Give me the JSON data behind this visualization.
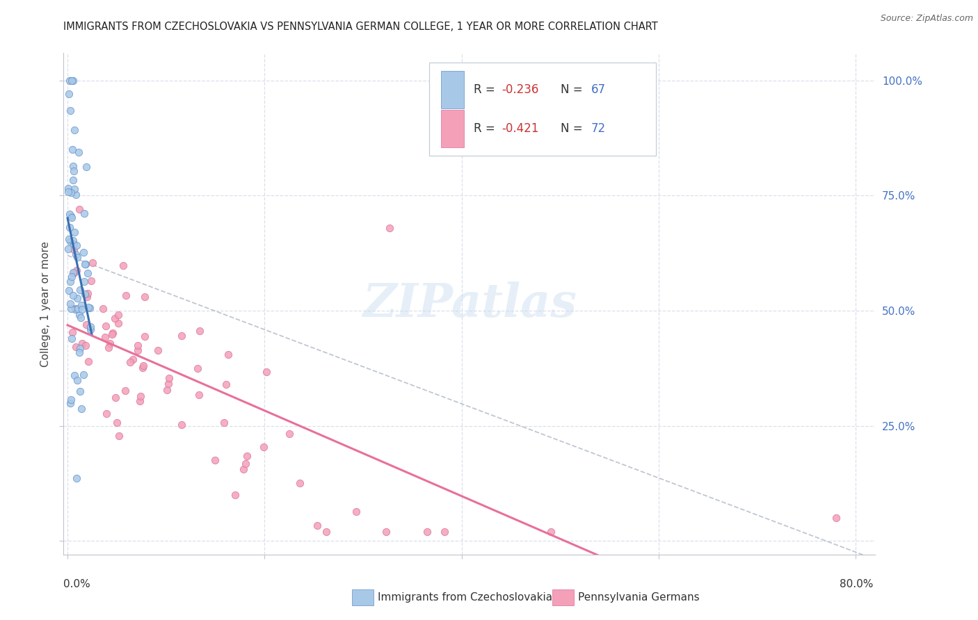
{
  "title": "IMMIGRANTS FROM CZECHOSLOVAKIA VS PENNSYLVANIA GERMAN COLLEGE, 1 YEAR OR MORE CORRELATION CHART",
  "source": "Source: ZipAtlas.com",
  "ylabel": "College, 1 year or more",
  "legend_label1": "Immigrants from Czechoslovakia",
  "legend_label2": "Pennsylvania Germans",
  "r1": "-0.236",
  "n1": "67",
  "r2": "-0.421",
  "n2": "72",
  "watermark": "ZIPatlas",
  "blue_color": "#a8c8e8",
  "pink_color": "#f4a0b8",
  "blue_line_color": "#3a6faf",
  "pink_line_color": "#e8709a",
  "gray_dash_color": "#b0b8c8",
  "bg_color": "#ffffff",
  "right_axis_color": "#4472c4",
  "legend_r_color": "#cc3333",
  "legend_n_color": "#4472c4",
  "blue_seed": 42,
  "pink_seed": 77,
  "xlim_max": 0.82,
  "ylim_max": 1.06
}
